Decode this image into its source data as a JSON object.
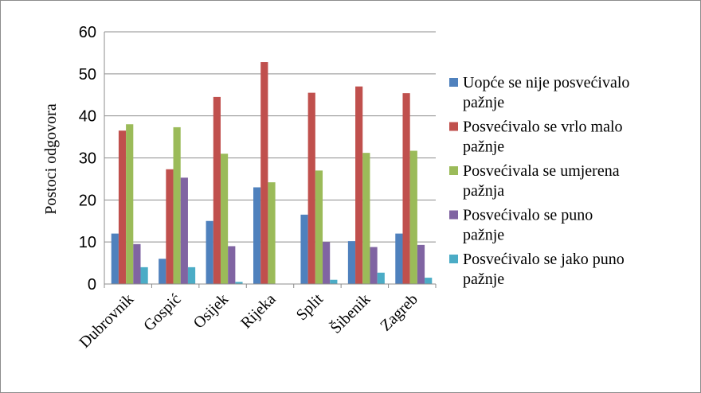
{
  "chart_data": {
    "type": "bar",
    "title": "",
    "xlabel": "",
    "ylabel": "Postoci odgovora",
    "ylim": [
      0,
      60
    ],
    "yticks": [
      0,
      10,
      20,
      30,
      40,
      50,
      60
    ],
    "grid": true,
    "legend_position": "right",
    "categories": [
      "Dubrovnik",
      "Gospić",
      "Osijek",
      "Rijeka",
      "Split",
      "Šibenik",
      "Zagreb"
    ],
    "series": [
      {
        "name_lines": [
          "Uopće se nije posvećivalo",
          "pažnje"
        ],
        "color": "#4f81bd",
        "values": [
          12,
          6,
          15,
          23,
          16.5,
          10.2,
          12
        ]
      },
      {
        "name_lines": [
          "Posvećivalo se vrlo malo",
          "pažnje"
        ],
        "color": "#c0504d",
        "values": [
          36.5,
          27.3,
          44.5,
          52.8,
          45.5,
          47,
          45.4
        ]
      },
      {
        "name_lines": [
          "Posvećivala se umjerena",
          "pažnja"
        ],
        "color": "#9bbb59",
        "values": [
          38,
          37.3,
          31,
          24.2,
          27,
          31.2,
          31.7
        ]
      },
      {
        "name_lines": [
          "Posvećivalo se puno",
          "pažnje"
        ],
        "color": "#8064a2",
        "values": [
          9.5,
          25.3,
          9,
          0,
          10,
          8.8,
          9.3
        ]
      },
      {
        "name_lines": [
          "Posvećivalo se jako puno",
          "pažnje"
        ],
        "color": "#4bacc6",
        "values": [
          4,
          4,
          0.5,
          0,
          1,
          2.7,
          1.5
        ]
      }
    ]
  }
}
